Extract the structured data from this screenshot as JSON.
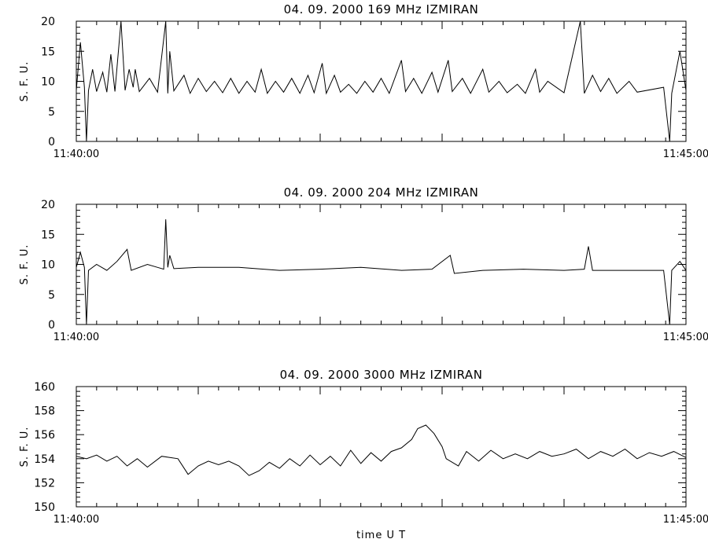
{
  "chart_data": [
    {
      "type": "line",
      "title": "04.  09.  2000    169  MHz    IZMIRAN",
      "ylabel": "S.  F.  U.",
      "ylim": [
        0,
        20
      ],
      "yticks": [
        0,
        5,
        10,
        15,
        20
      ],
      "xlim": [
        "11:40:00",
        "11:45:00"
      ],
      "xtick_labels": [
        "11:40:00",
        "11:45:00"
      ],
      "series": [
        {
          "points": [
            [
              "11:40:00",
              8.5
            ],
            [
              "11:40:02",
              16.5
            ],
            [
              "11:40:04",
              9.0
            ],
            [
              "11:40:05",
              0.0
            ],
            [
              "11:40:06",
              8.5
            ],
            [
              "11:40:08",
              12.0
            ],
            [
              "11:40:10",
              8.3
            ],
            [
              "11:40:13",
              11.5
            ],
            [
              "11:40:15",
              8.2
            ],
            [
              "11:40:17",
              14.5
            ],
            [
              "11:40:19",
              8.3
            ],
            [
              "11:40:22",
              20.0
            ],
            [
              "11:40:24",
              8.5
            ],
            [
              "11:40:26",
              12.0
            ],
            [
              "11:40:28",
              9.0
            ],
            [
              "11:40:29",
              12.0
            ],
            [
              "11:40:31",
              8.3
            ],
            [
              "11:40:36",
              10.5
            ],
            [
              "11:40:40",
              8.2
            ],
            [
              "11:40:44",
              20.0
            ],
            [
              "11:40:45",
              8.0
            ],
            [
              "11:40:46",
              15.0
            ],
            [
              "11:40:48",
              8.4
            ],
            [
              "11:40:53",
              11.0
            ],
            [
              "11:40:56",
              8.0
            ],
            [
              "11:41:00",
              10.5
            ],
            [
              "11:41:04",
              8.3
            ],
            [
              "11:41:08",
              10.0
            ],
            [
              "11:41:12",
              8.1
            ],
            [
              "11:41:16",
              10.5
            ],
            [
              "11:41:20",
              8.0
            ],
            [
              "11:41:24",
              10.0
            ],
            [
              "11:41:28",
              8.2
            ],
            [
              "11:41:31",
              12.0
            ],
            [
              "11:41:34",
              8.0
            ],
            [
              "11:41:38",
              10.0
            ],
            [
              "11:41:42",
              8.2
            ],
            [
              "11:41:46",
              10.5
            ],
            [
              "11:41:50",
              8.0
            ],
            [
              "11:41:54",
              11.0
            ],
            [
              "11:41:57",
              8.1
            ],
            [
              "11:42:01",
              13.0
            ],
            [
              "11:42:03",
              8.0
            ],
            [
              "11:42:07",
              11.0
            ],
            [
              "11:42:10",
              8.2
            ],
            [
              "11:42:14",
              9.5
            ],
            [
              "11:42:18",
              8.0
            ],
            [
              "11:42:22",
              10.0
            ],
            [
              "11:42:26",
              8.2
            ],
            [
              "11:42:30",
              10.5
            ],
            [
              "11:42:34",
              8.0
            ],
            [
              "11:42:40",
              13.5
            ],
            [
              "11:42:42",
              8.3
            ],
            [
              "11:42:46",
              10.5
            ],
            [
              "11:42:50",
              8.0
            ],
            [
              "11:42:55",
              11.5
            ],
            [
              "11:42:58",
              8.2
            ],
            [
              "11:43:03",
              13.5
            ],
            [
              "11:43:05",
              8.3
            ],
            [
              "11:43:10",
              10.5
            ],
            [
              "11:43:14",
              8.0
            ],
            [
              "11:43:20",
              12.0
            ],
            [
              "11:43:23",
              8.2
            ],
            [
              "11:43:28",
              10.0
            ],
            [
              "11:43:32",
              8.1
            ],
            [
              "11:43:37",
              9.5
            ],
            [
              "11:43:41",
              8.0
            ],
            [
              "11:43:46",
              12.0
            ],
            [
              "11:43:48",
              8.2
            ],
            [
              "11:43:52",
              10.0
            ],
            [
              "11:44:00",
              8.1
            ],
            [
              "11:44:08",
              20.0
            ],
            [
              "11:44:10",
              8.0
            ],
            [
              "11:44:14",
              11.0
            ],
            [
              "11:44:18",
              8.3
            ],
            [
              "11:44:22",
              10.5
            ],
            [
              "11:44:26",
              8.0
            ],
            [
              "11:44:32",
              10.0
            ],
            [
              "11:44:36",
              8.2
            ],
            [
              "11:44:49",
              9.0
            ],
            [
              "11:44:52",
              0.0
            ],
            [
              "11:44:53",
              8.0
            ],
            [
              "11:44:57",
              15.0
            ],
            [
              "11:45:00",
              8.5
            ]
          ]
        }
      ]
    },
    {
      "type": "line",
      "title": "04.  09.  2000    204  MHz    IZMIRAN",
      "ylabel": "S.  F.  U.",
      "ylim": [
        0,
        20
      ],
      "yticks": [
        0,
        5,
        10,
        15,
        20
      ],
      "xlim": [
        "11:40:00",
        "11:45:00"
      ],
      "xtick_labels": [
        "11:40:00",
        "11:45:00"
      ],
      "series": [
        {
          "points": [
            [
              "11:40:00",
              9.5
            ],
            [
              "11:40:02",
              12.0
            ],
            [
              "11:40:04",
              9.5
            ],
            [
              "11:40:05",
              0.0
            ],
            [
              "11:40:06",
              9.0
            ],
            [
              "11:40:10",
              10.0
            ],
            [
              "11:40:15",
              9.0
            ],
            [
              "11:40:20",
              10.5
            ],
            [
              "11:40:25",
              12.5
            ],
            [
              "11:40:27",
              9.0
            ],
            [
              "11:40:35",
              10.0
            ],
            [
              "11:40:40",
              9.5
            ],
            [
              "11:40:43",
              9.2
            ],
            [
              "11:40:44",
              17.5
            ],
            [
              "11:40:45",
              9.5
            ],
            [
              "11:40:46",
              11.5
            ],
            [
              "11:40:48",
              9.3
            ],
            [
              "11:41:00",
              9.5
            ],
            [
              "11:41:20",
              9.5
            ],
            [
              "11:41:40",
              9.0
            ],
            [
              "11:42:00",
              9.2
            ],
            [
              "11:42:20",
              9.5
            ],
            [
              "11:42:40",
              9.0
            ],
            [
              "11:42:55",
              9.2
            ],
            [
              "11:43:04",
              11.5
            ],
            [
              "11:43:06",
              8.5
            ],
            [
              "11:43:20",
              9.0
            ],
            [
              "11:43:40",
              9.2
            ],
            [
              "11:44:00",
              9.0
            ],
            [
              "11:44:10",
              9.2
            ],
            [
              "11:44:12",
              13.0
            ],
            [
              "11:44:14",
              9.0
            ],
            [
              "11:44:30",
              9.0
            ],
            [
              "11:44:49",
              9.0
            ],
            [
              "11:44:52",
              0.0
            ],
            [
              "11:44:53",
              9.0
            ],
            [
              "11:44:57",
              10.5
            ],
            [
              "11:45:00",
              9.0
            ]
          ]
        }
      ]
    },
    {
      "type": "line",
      "title": "04.  09.  2000    3000  MHz    IZMIRAN",
      "ylabel": "S.  F.  U.",
      "xlabel": "time    U  T",
      "ylim": [
        150,
        160
      ],
      "yticks": [
        150,
        152,
        154,
        156,
        158,
        160
      ],
      "xlim": [
        "11:40:00",
        "11:45:00"
      ],
      "xtick_labels": [
        "11:40:00",
        "11:45:00"
      ],
      "series": [
        {
          "points": [
            [
              "11:40:00",
              154.2
            ],
            [
              "11:40:05",
              154.0
            ],
            [
              "11:40:10",
              154.3
            ],
            [
              "11:40:15",
              153.8
            ],
            [
              "11:40:20",
              154.2
            ],
            [
              "11:40:25",
              153.4
            ],
            [
              "11:40:30",
              154.0
            ],
            [
              "11:40:35",
              153.3
            ],
            [
              "11:40:42",
              154.2
            ],
            [
              "11:40:50",
              154.0
            ],
            [
              "11:40:55",
              152.7
            ],
            [
              "11:41:00",
              153.4
            ],
            [
              "11:41:05",
              153.8
            ],
            [
              "11:41:10",
              153.5
            ],
            [
              "11:41:15",
              153.8
            ],
            [
              "11:41:20",
              153.4
            ],
            [
              "11:41:25",
              152.6
            ],
            [
              "11:41:30",
              153.0
            ],
            [
              "11:41:35",
              153.7
            ],
            [
              "11:41:40",
              153.2
            ],
            [
              "11:41:45",
              154.0
            ],
            [
              "11:41:50",
              153.4
            ],
            [
              "11:41:55",
              154.3
            ],
            [
              "11:42:00",
              153.5
            ],
            [
              "11:42:05",
              154.2
            ],
            [
              "11:42:10",
              153.4
            ],
            [
              "11:42:15",
              154.7
            ],
            [
              "11:42:20",
              153.6
            ],
            [
              "11:42:25",
              154.5
            ],
            [
              "11:42:30",
              153.8
            ],
            [
              "11:42:35",
              154.6
            ],
            [
              "11:42:40",
              154.9
            ],
            [
              "11:42:45",
              155.6
            ],
            [
              "11:42:48",
              156.5
            ],
            [
              "11:42:52",
              156.8
            ],
            [
              "11:42:56",
              156.1
            ],
            [
              "11:43:00",
              155.0
            ],
            [
              "11:43:02",
              154.0
            ],
            [
              "11:43:08",
              153.4
            ],
            [
              "11:43:12",
              154.6
            ],
            [
              "11:43:18",
              153.8
            ],
            [
              "11:43:24",
              154.7
            ],
            [
              "11:43:30",
              154.0
            ],
            [
              "11:43:36",
              154.4
            ],
            [
              "11:43:42",
              154.0
            ],
            [
              "11:43:48",
              154.6
            ],
            [
              "11:43:54",
              154.2
            ],
            [
              "11:44:00",
              154.4
            ],
            [
              "11:44:06",
              154.8
            ],
            [
              "11:44:12",
              154.0
            ],
            [
              "11:44:18",
              154.6
            ],
            [
              "11:44:24",
              154.2
            ],
            [
              "11:44:30",
              154.8
            ],
            [
              "11:44:36",
              154.0
            ],
            [
              "11:44:42",
              154.5
            ],
            [
              "11:44:48",
              154.2
            ],
            [
              "11:44:54",
              154.6
            ],
            [
              "11:45:00",
              154.1
            ]
          ]
        }
      ]
    }
  ]
}
